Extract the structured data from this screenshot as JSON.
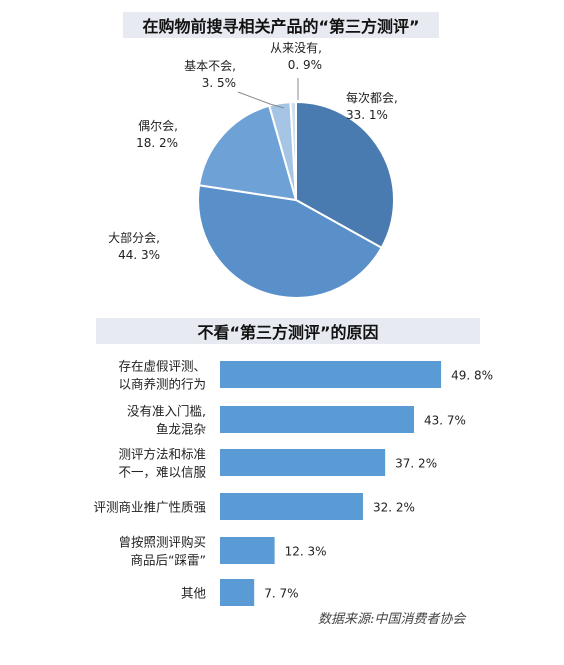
{
  "chart_data": [
    {
      "type": "pie",
      "title": "在购物前搜寻相关产品的“第三方测评”",
      "slices": [
        {
          "label": "每次都会,",
          "value": 33.1,
          "value_label": "33. 1%",
          "color": "#4a7bb0"
        },
        {
          "label": "大部分会,",
          "value": 44.3,
          "value_label": "44. 3%",
          "color": "#5a90c9"
        },
        {
          "label": "偶尔会,",
          "value": 18.2,
          "value_label": "18. 2%",
          "color": "#6ea2d6"
        },
        {
          "label": "基本不会,",
          "value": 3.5,
          "value_label": "3. 5%",
          "color": "#a6c4e4"
        },
        {
          "label": "从来没有,",
          "value": 0.9,
          "value_label": "0. 9%",
          "color": "#d0dfef"
        }
      ],
      "start_angle_deg": 0,
      "direction": "clockwise"
    },
    {
      "type": "bar",
      "orientation": "horizontal",
      "title": "不看“第三方测评”的原因",
      "color": "#5b9bd5",
      "categories": [
        [
          "存在虚假评测、",
          "以商养测的行为"
        ],
        [
          "没有准入门槛,",
          "鱼龙混杂"
        ],
        [
          "测评方法和标准",
          "不一，难以信服"
        ],
        [
          "评测商业推广性质强"
        ],
        [
          "曾按照测评购买",
          "商品后“踩雷”"
        ],
        [
          "其他"
        ]
      ],
      "values": [
        49.8,
        43.7,
        37.2,
        32.2,
        12.3,
        7.7
      ],
      "value_labels": [
        "49. 8%",
        "43. 7%",
        "37. 2%",
        "32. 2%",
        "12. 3%",
        "7. 7%"
      ],
      "xlim": [
        0,
        50
      ]
    }
  ],
  "source": "数据来源:中国消费者协会"
}
